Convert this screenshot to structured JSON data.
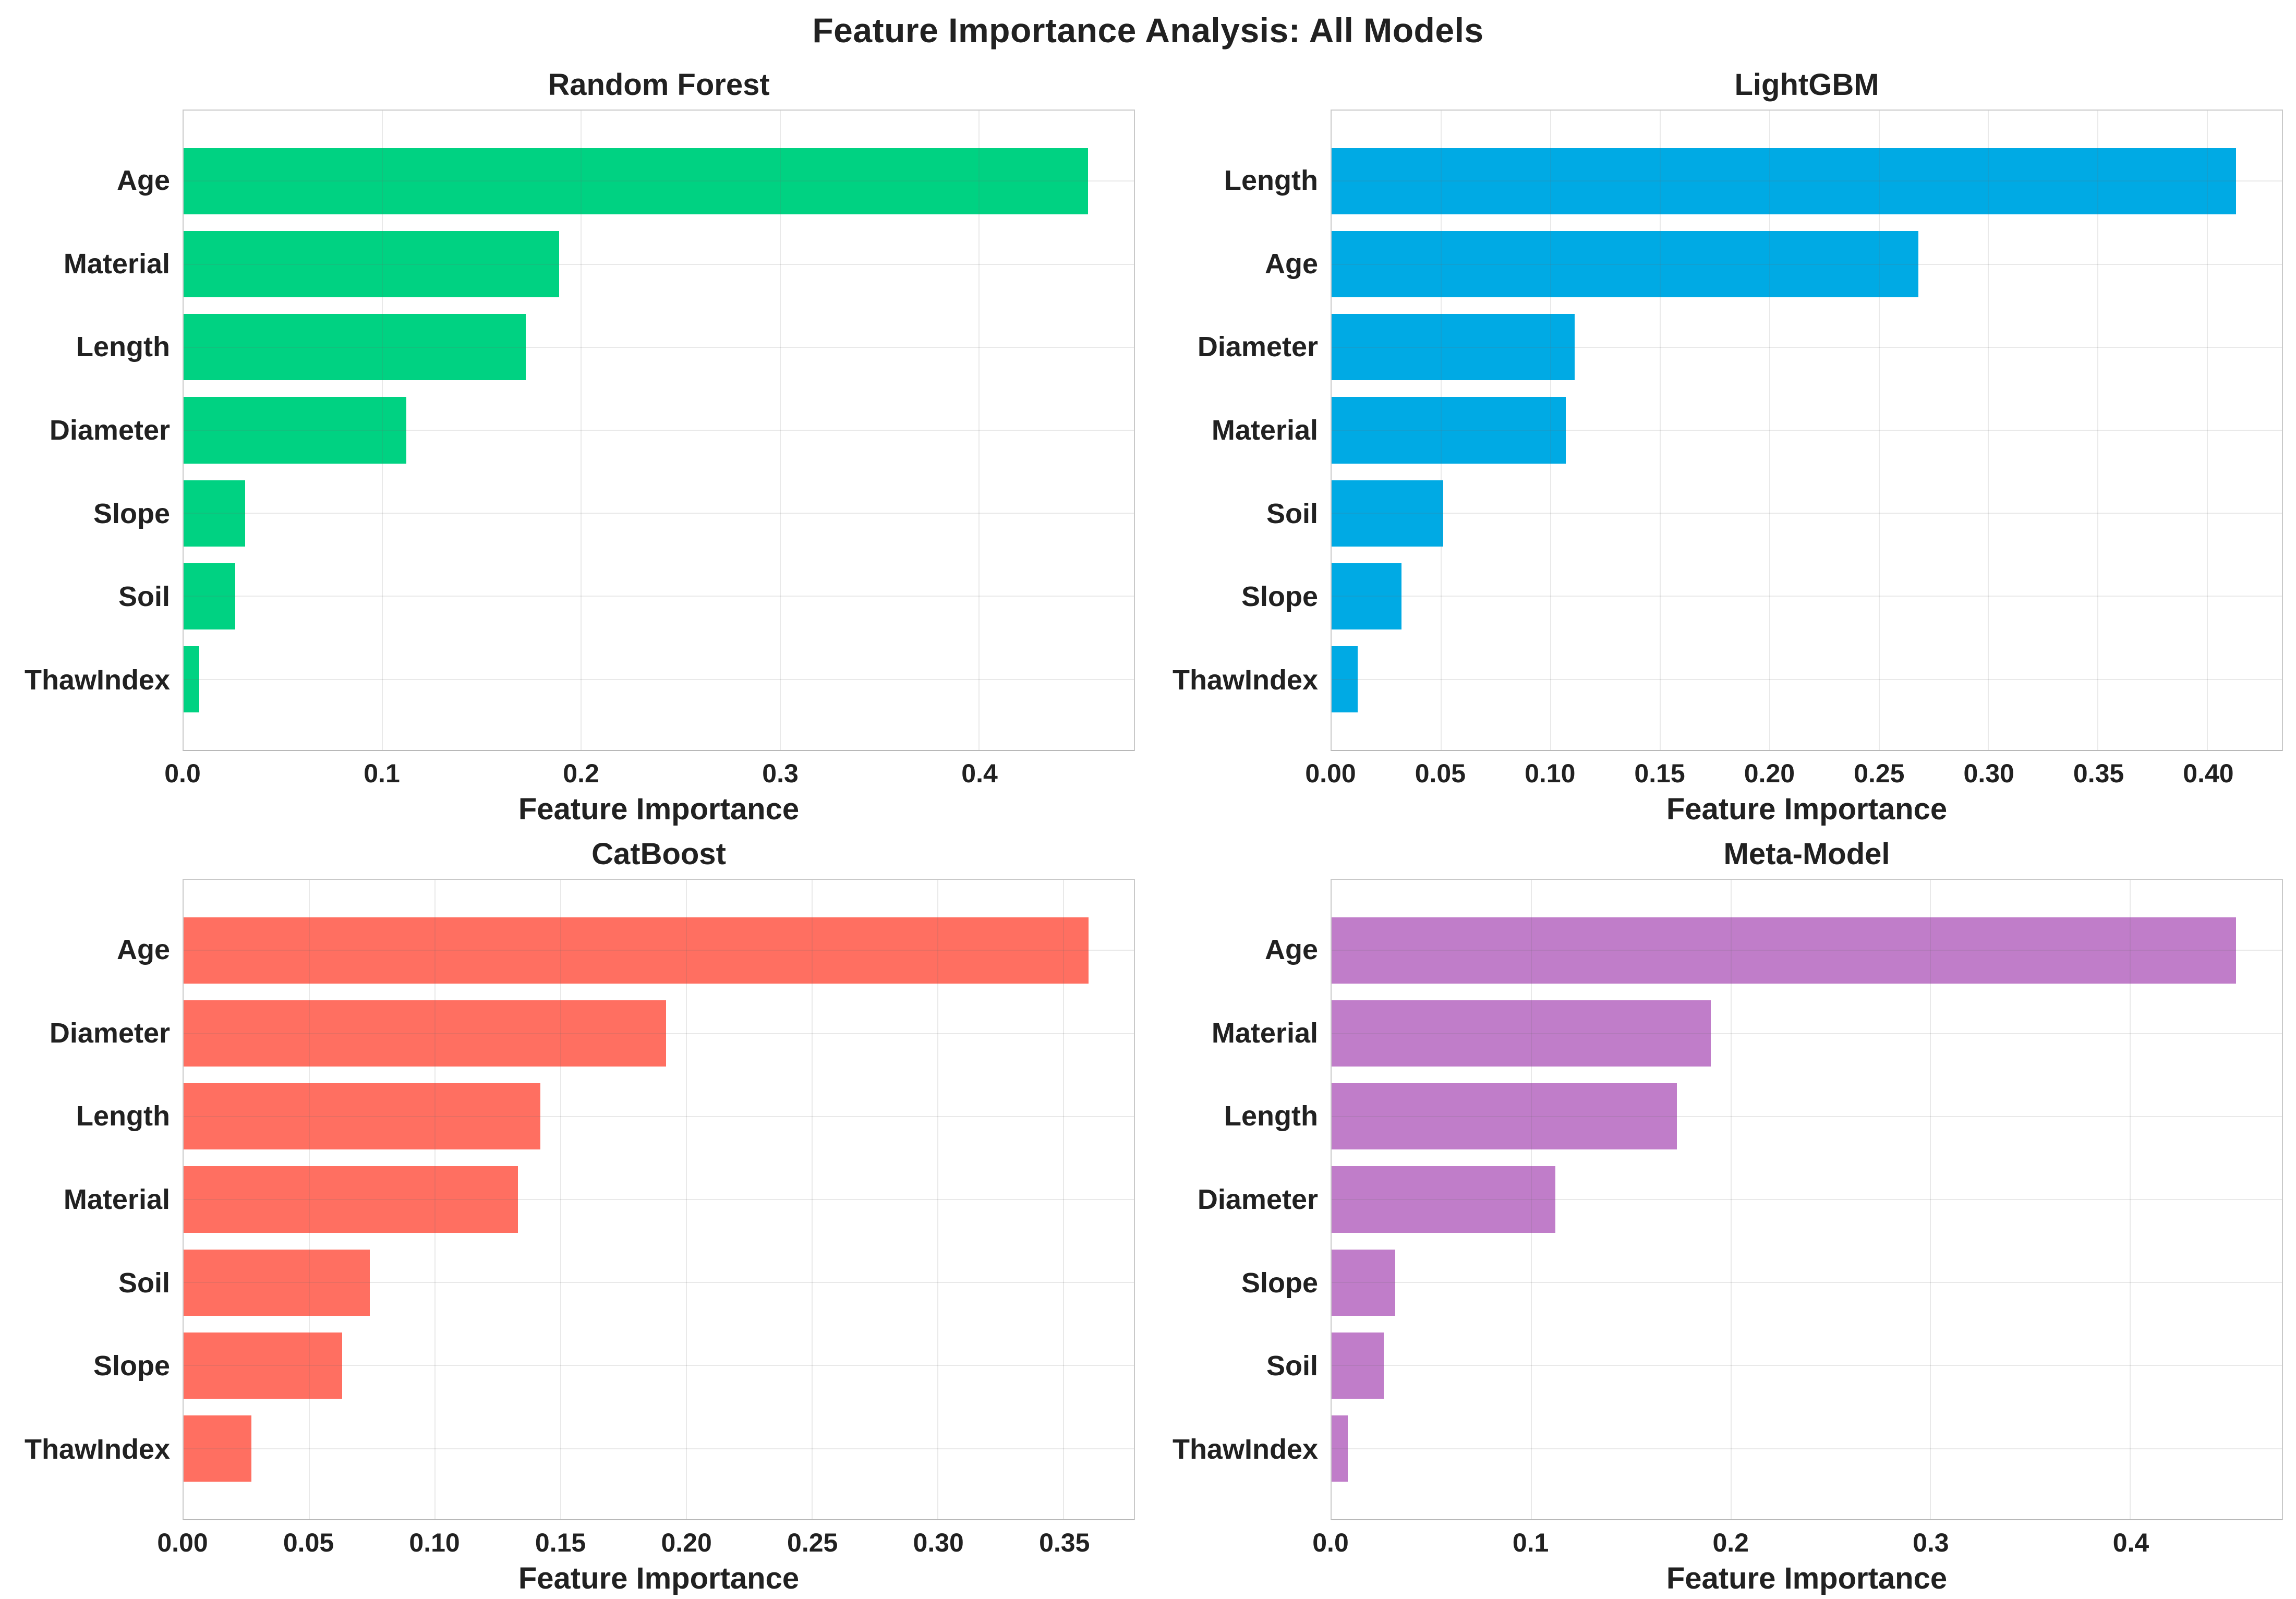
{
  "figure_title": "Feature Importance Analysis: All Models",
  "palette": {
    "background": "#FFFFFF",
    "text": "#212121",
    "gridline": "#DCDCDC",
    "plot_border": "#C9C9C9",
    "random_forest_green": "#00D282",
    "lightgbm_blue": "#00AAE4",
    "catboost_coral": "#FF6F61",
    "meta_model_purple": "#C07DC9"
  },
  "chart_data": [
    {
      "type": "bar",
      "orientation": "horizontal",
      "title": "Random Forest",
      "xlabel": "Feature Importance",
      "bar_color": "#00D282",
      "categories": [
        "Age",
        "Material",
        "Length",
        "Diameter",
        "Slope",
        "Soil",
        "ThawIndex"
      ],
      "values": [
        0.455,
        0.189,
        0.172,
        0.112,
        0.031,
        0.026,
        0.008
      ],
      "xlim": [
        0,
        0.478
      ],
      "xticks": [
        0.0,
        0.1,
        0.2,
        0.3,
        0.4
      ],
      "xtick_labels": [
        "0.0",
        "0.1",
        "0.2",
        "0.3",
        "0.4"
      ],
      "grid": true,
      "legend": "none"
    },
    {
      "type": "bar",
      "orientation": "horizontal",
      "title": "LightGBM",
      "xlabel": "Feature Importance",
      "bar_color": "#00AAE4",
      "categories": [
        "Length",
        "Age",
        "Diameter",
        "Material",
        "Soil",
        "Slope",
        "ThawIndex"
      ],
      "values": [
        0.413,
        0.268,
        0.111,
        0.107,
        0.051,
        0.032,
        0.012
      ],
      "xlim": [
        0,
        0.434
      ],
      "xticks": [
        0.0,
        0.05,
        0.1,
        0.15,
        0.2,
        0.25,
        0.3,
        0.35,
        0.4
      ],
      "xtick_labels": [
        "0.00",
        "0.05",
        "0.10",
        "0.15",
        "0.20",
        "0.25",
        "0.30",
        "0.35",
        "0.40"
      ],
      "grid": true,
      "legend": "none"
    },
    {
      "type": "bar",
      "orientation": "horizontal",
      "title": "CatBoost",
      "xlabel": "Feature Importance",
      "bar_color": "#FF6F61",
      "categories": [
        "Age",
        "Diameter",
        "Length",
        "Material",
        "Soil",
        "Slope",
        "ThawIndex"
      ],
      "values": [
        0.36,
        0.192,
        0.142,
        0.133,
        0.074,
        0.063,
        0.027
      ],
      "xlim": [
        0,
        0.378
      ],
      "xticks": [
        0.0,
        0.05,
        0.1,
        0.15,
        0.2,
        0.25,
        0.3,
        0.35
      ],
      "xtick_labels": [
        "0.00",
        "0.05",
        "0.10",
        "0.15",
        "0.20",
        "0.25",
        "0.30",
        "0.35"
      ],
      "grid": true,
      "legend": "none"
    },
    {
      "type": "bar",
      "orientation": "horizontal",
      "title": "Meta-Model",
      "xlabel": "Feature Importance",
      "bar_color": "#C07DC9",
      "categories": [
        "Age",
        "Material",
        "Length",
        "Diameter",
        "Slope",
        "Soil",
        "ThawIndex"
      ],
      "values": [
        0.453,
        0.19,
        0.173,
        0.112,
        0.032,
        0.026,
        0.008
      ],
      "xlim": [
        0,
        0.476
      ],
      "xticks": [
        0.0,
        0.1,
        0.2,
        0.3,
        0.4
      ],
      "xtick_labels": [
        "0.0",
        "0.1",
        "0.2",
        "0.3",
        "0.4"
      ],
      "grid": true,
      "legend": "none"
    }
  ]
}
